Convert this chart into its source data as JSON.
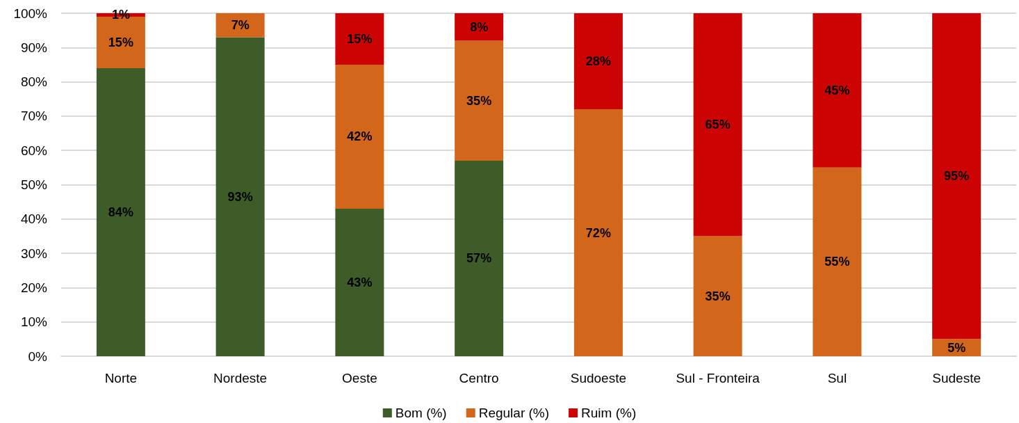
{
  "chart_data": {
    "type": "bar",
    "stacked": true,
    "categories": [
      "Norte",
      "Nordeste",
      "Oeste",
      "Centro",
      "Sudoeste",
      "Sul - Fronteira",
      "Sul",
      "Sudeste"
    ],
    "series": [
      {
        "name": "Bom (%)",
        "color": "#3d5c28",
        "values": [
          84,
          93,
          43,
          57,
          null,
          null,
          null,
          null
        ],
        "value_labels": [
          "84%",
          "93%",
          "43%",
          "57%",
          null,
          null,
          null,
          null
        ]
      },
      {
        "name": "Regular (%)",
        "color": "#d2661a",
        "values": [
          15,
          7,
          42,
          35,
          72,
          35,
          55,
          5
        ],
        "value_labels": [
          "15%",
          "7%",
          "42%",
          "35%",
          "72%",
          "35%",
          "55%",
          "5%"
        ]
      },
      {
        "name": "Ruim (%)",
        "color": "#cc0404",
        "values": [
          1,
          null,
          15,
          8,
          28,
          65,
          45,
          95
        ],
        "value_labels": [
          "1%",
          null,
          "15%",
          "8%",
          "28%",
          "65%",
          "45%",
          "95%"
        ]
      }
    ],
    "ylim": [
      0,
      100
    ],
    "yticks": [
      {
        "value": 0,
        "label": "0%"
      },
      {
        "value": 10,
        "label": "10%"
      },
      {
        "value": 20,
        "label": "20%"
      },
      {
        "value": 30,
        "label": "30%"
      },
      {
        "value": 40,
        "label": "40%"
      },
      {
        "value": 50,
        "label": "50%"
      },
      {
        "value": 60,
        "label": "60%"
      },
      {
        "value": 70,
        "label": "70%"
      },
      {
        "value": 80,
        "label": "80%"
      },
      {
        "value": 90,
        "label": "90%"
      },
      {
        "value": 100,
        "label": "100%"
      }
    ],
    "grid": "y",
    "legend": "bottom"
  }
}
